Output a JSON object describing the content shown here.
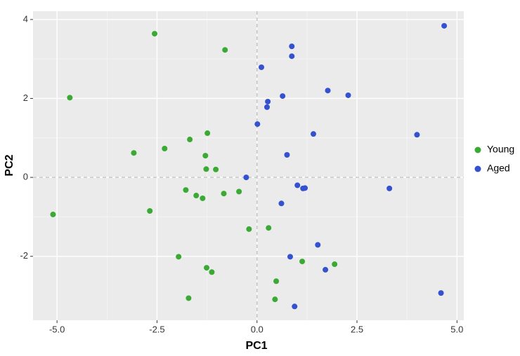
{
  "chart_data": {
    "type": "scatter",
    "x_label": "PC1",
    "y_label": "PC2",
    "xlim": [
      -5.6,
      5.17
    ],
    "ylim": [
      -3.62,
      4.21
    ],
    "xticks": [
      {
        "value": -5,
        "label": "-5.0"
      },
      -2.5,
      {
        "value": 0,
        "label": "0.0"
      },
      2.5,
      {
        "value": 5,
        "label": "5.0"
      }
    ],
    "yticks": [
      -2,
      0,
      2,
      4
    ],
    "grid": true,
    "hline": 0,
    "vline": 0,
    "legend": "right",
    "series": [
      {
        "name": "Young",
        "color": "#3aaa35",
        "x": [
          -2.56,
          -0.8,
          -4.68,
          -1.24,
          -1.68,
          -2.31,
          -3.08,
          -1.29,
          -1.27,
          -1.03,
          -1.78,
          -1.52,
          -1.36,
          -0.83,
          -0.45,
          -2.68,
          -5.1,
          -0.2,
          0.29,
          -1.96,
          1.13,
          1.94,
          -1.26,
          -1.13,
          0.48,
          0.45,
          -1.71
        ],
        "values": [
          3.64,
          3.23,
          2.02,
          1.12,
          0.96,
          0.73,
          0.62,
          0.55,
          0.21,
          0.2,
          -0.32,
          -0.46,
          -0.53,
          -0.41,
          -0.36,
          -0.85,
          -0.94,
          -1.31,
          -1.28,
          -2.01,
          -2.13,
          -2.2,
          -2.29,
          -2.4,
          -2.63,
          -3.09,
          -3.06
        ]
      },
      {
        "name": "Aged",
        "color": "#3452d0",
        "x": [
          4.68,
          0.87,
          0.87,
          0.11,
          1.77,
          2.28,
          0.64,
          0.27,
          0.25,
          0.01,
          4.0,
          1.41,
          0.75,
          -0.27,
          1.01,
          1.2,
          1.15,
          3.31,
          0.61,
          1.52,
          0.83,
          1.71,
          4.6,
          0.94
        ],
        "values": [
          3.84,
          3.32,
          3.07,
          2.79,
          2.2,
          2.08,
          2.06,
          1.92,
          1.78,
          1.35,
          1.08,
          1.1,
          0.57,
          0.0,
          -0.2,
          -0.27,
          -0.28,
          -0.28,
          -0.66,
          -1.71,
          -2.01,
          -2.34,
          -2.93,
          -3.27
        ]
      }
    ]
  }
}
